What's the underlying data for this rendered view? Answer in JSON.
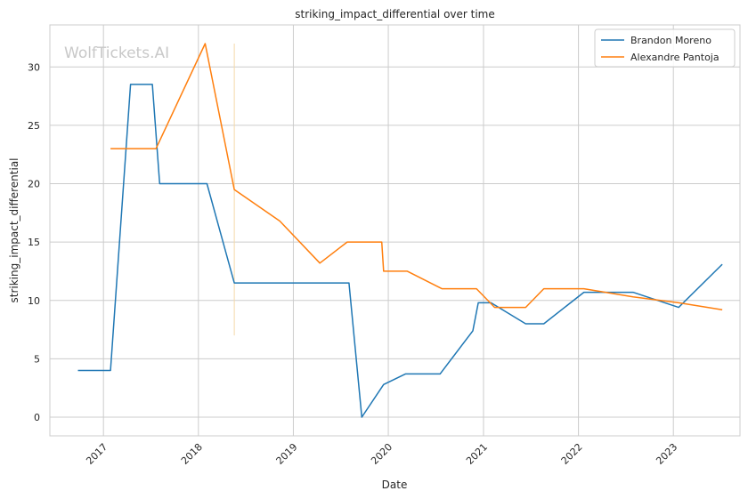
{
  "chart_data": {
    "type": "line",
    "title": "striking_impact_differential over time",
    "xlabel": "Date",
    "ylabel": "striking_impact_differential",
    "watermark": "WolfTickets.AI",
    "xlim": [
      "2016-06-09",
      "2023-09-14"
    ],
    "ylim": [
      -1.6,
      33.6
    ],
    "x_ticks": [
      {
        "date": "2017-01-01",
        "label": "2017"
      },
      {
        "date": "2018-01-01",
        "label": "2018"
      },
      {
        "date": "2019-01-01",
        "label": "2019"
      },
      {
        "date": "2020-01-01",
        "label": "2020"
      },
      {
        "date": "2021-01-01",
        "label": "2021"
      },
      {
        "date": "2022-01-01",
        "label": "2022"
      },
      {
        "date": "2023-01-01",
        "label": "2023"
      }
    ],
    "y_ticks": [
      0,
      5,
      10,
      15,
      20,
      25,
      30
    ],
    "grid": true,
    "legend_position": "top-right",
    "series": [
      {
        "name": "Brandon Moreno",
        "color": "#1f77b4",
        "points": [
          {
            "x": "2016-09-25",
            "y": 4.0
          },
          {
            "x": "2017-01-28",
            "y": 4.0
          },
          {
            "x": "2017-04-15",
            "y": 28.5
          },
          {
            "x": "2017-07-08",
            "y": 28.5
          },
          {
            "x": "2017-08-05",
            "y": 20.0
          },
          {
            "x": "2018-02-03",
            "y": 20.0
          },
          {
            "x": "2018-05-19",
            "y": 11.5
          },
          {
            "x": "2019-08-03",
            "y": 11.5
          },
          {
            "x": "2019-09-21",
            "y": 0.0
          },
          {
            "x": "2019-12-14",
            "y": 2.8
          },
          {
            "x": "2020-03-07",
            "y": 3.7
          },
          {
            "x": "2020-07-18",
            "y": 3.7
          },
          {
            "x": "2020-11-21",
            "y": 7.4
          },
          {
            "x": "2020-12-12",
            "y": 9.8
          },
          {
            "x": "2021-01-30",
            "y": 9.8
          },
          {
            "x": "2021-06-12",
            "y": 8.0
          },
          {
            "x": "2021-08-21",
            "y": 8.0
          },
          {
            "x": "2022-01-22",
            "y": 10.7
          },
          {
            "x": "2022-07-30",
            "y": 10.7
          },
          {
            "x": "2023-01-21",
            "y": 9.4
          },
          {
            "x": "2023-07-08",
            "y": 13.1
          }
        ]
      },
      {
        "name": "Alexandre Pantoja",
        "color": "#ff7f0e",
        "points": [
          {
            "x": "2017-01-28",
            "y": 23.0
          },
          {
            "x": "2017-07-22",
            "y": 23.0
          },
          {
            "x": "2018-01-27",
            "y": 32.0
          },
          {
            "x": "2018-05-19",
            "y": 19.5
          },
          {
            "x": "2018-11-10",
            "y": 16.8
          },
          {
            "x": "2019-04-13",
            "y": 13.2
          },
          {
            "x": "2019-07-27",
            "y": 15.0
          },
          {
            "x": "2019-12-07",
            "y": 15.0
          },
          {
            "x": "2019-12-14",
            "y": 12.5
          },
          {
            "x": "2020-03-14",
            "y": 12.5
          },
          {
            "x": "2020-07-25",
            "y": 11.0
          },
          {
            "x": "2020-12-05",
            "y": 11.0
          },
          {
            "x": "2021-02-13",
            "y": 9.4
          },
          {
            "x": "2021-06-12",
            "y": 9.4
          },
          {
            "x": "2021-08-21",
            "y": 11.0
          },
          {
            "x": "2022-01-22",
            "y": 11.0
          },
          {
            "x": "2022-07-30",
            "y": 10.3
          },
          {
            "x": "2023-01-21",
            "y": 9.8
          },
          {
            "x": "2023-07-08",
            "y": 9.2
          }
        ]
      }
    ],
    "error_bars": [
      {
        "series": "Alexandre Pantoja",
        "x": "2018-05-19",
        "low": 7.0,
        "high": 32.0,
        "color": "#f5d9a8"
      }
    ]
  }
}
